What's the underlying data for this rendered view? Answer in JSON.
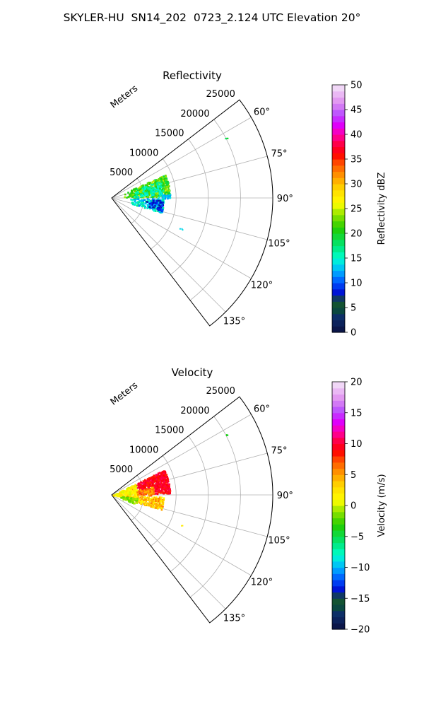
{
  "title": "SKYLER-HU  SN14_202  0723_2.124 UTC Elevation 20°",
  "chart_data": [
    {
      "type": "heatmap",
      "subtype": "polar-sector",
      "title": "Reflectivity",
      "radial_label": "Meters",
      "radial_ticks": [
        5000,
        10000,
        15000,
        20000,
        25000
      ],
      "radial_range": [
        0,
        25000
      ],
      "angle_range_deg": [
        52.5,
        142.5
      ],
      "angle_ticks": [
        "60°",
        "75°",
        "90°",
        "105°",
        "120°",
        "135°"
      ],
      "grid": true,
      "colorbar": {
        "label": "Reflectivity dBZ",
        "range": [
          0,
          50
        ],
        "ticks": [
          "0",
          "5",
          "10",
          "15",
          "20",
          "25",
          "30",
          "35",
          "40",
          "45",
          "50"
        ]
      },
      "echo_regions": [
        {
          "azimuth_deg": [
            64,
            88
          ],
          "range_m": [
            0,
            9000
          ],
          "value": "15-25 dBZ"
        },
        {
          "azimuth_deg": [
            90,
            106
          ],
          "range_m": [
            1000,
            8000
          ],
          "value": "5-15 dBZ"
        },
        {
          "azimuth_deg": [
            62,
            62.5
          ],
          "range_m": [
            19800,
            20200
          ],
          "value": "15 dBZ"
        },
        {
          "azimuth_deg": [
            113,
            114
          ],
          "range_m": [
            11500,
            12000
          ],
          "value": "10 dBZ"
        }
      ]
    },
    {
      "type": "heatmap",
      "subtype": "polar-sector",
      "title": "Velocity",
      "radial_label": "Meters",
      "radial_ticks": [
        5000,
        10000,
        15000,
        20000,
        25000
      ],
      "radial_range": [
        0,
        25000
      ],
      "angle_range_deg": [
        52.5,
        142.5
      ],
      "angle_ticks": [
        "60°",
        "75°",
        "90°",
        "105°",
        "120°",
        "135°"
      ],
      "grid": true,
      "colorbar": {
        "label": "Velocity (m/s)",
        "range": [
          -20,
          20
        ],
        "ticks": [
          "−20",
          "−15",
          "−10",
          "−5",
          "0",
          "5",
          "10",
          "15",
          "20"
        ]
      },
      "echo_regions": [
        {
          "azimuth_deg": [
            64,
            88
          ],
          "range_m": [
            3000,
            9000
          ],
          "value": "8-12 m/s"
        },
        {
          "azimuth_deg": [
            64,
            100
          ],
          "range_m": [
            0,
            4000
          ],
          "value": "0-3 m/s"
        },
        {
          "azimuth_deg": [
            92,
            106
          ],
          "range_m": [
            2000,
            8000
          ],
          "value": "2-6 m/s"
        },
        {
          "azimuth_deg": [
            62,
            62.5
          ],
          "range_m": [
            19800,
            20200
          ],
          "value": "-5 m/s"
        }
      ]
    }
  ],
  "colors": {
    "grid": "#b0b0b0",
    "frame": "#000000"
  }
}
